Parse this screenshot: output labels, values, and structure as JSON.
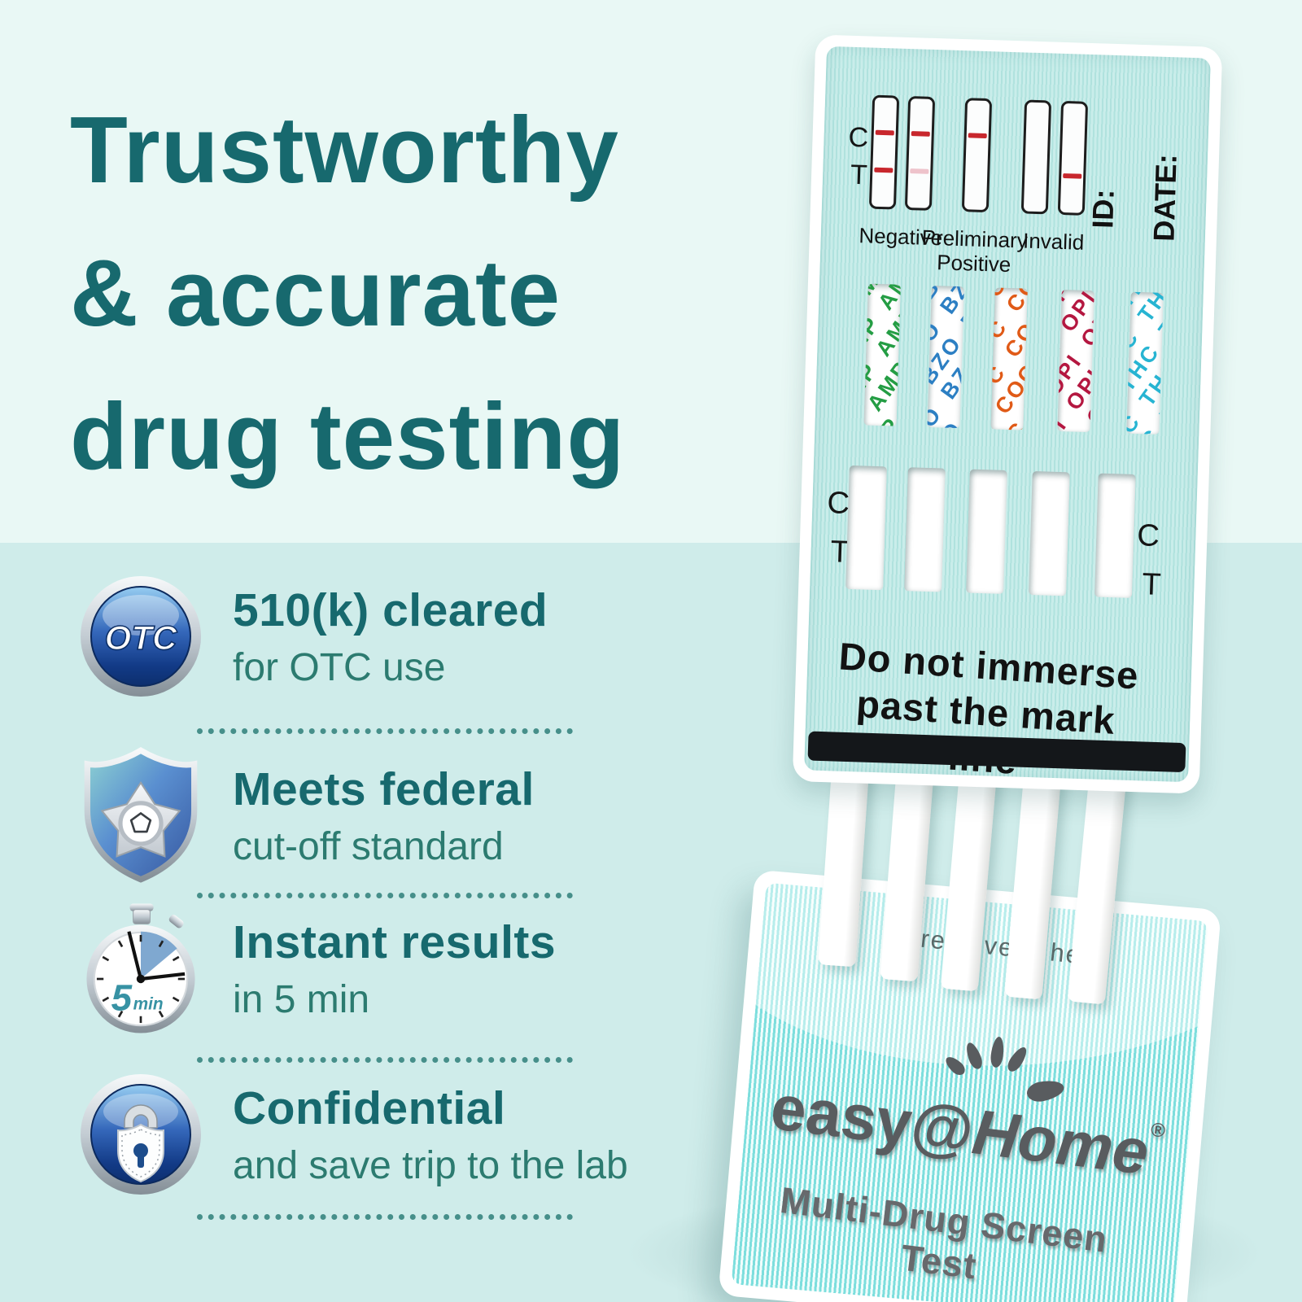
{
  "colors": {
    "heading_teal": "#17696e",
    "subtext_teal": "#2c7b70",
    "background_top": "#e9f8f5",
    "background_bottom": "#cfecea",
    "separator_teal": "#2f7f7a",
    "device_label_teal": "#bce7e3",
    "cap_aqua": "#7ddedd",
    "test_line_red": "#c8272d",
    "faint_test_line_pink": "#eec3cb",
    "mark_line_black": "#14171a",
    "logo_gray": "#595c5f",
    "otc_badge_blue": "#12356f",
    "stopwatch_accent_teal": "#3792a4"
  },
  "headline": {
    "line1": "Trustworthy",
    "line2": "& accurate",
    "line3": "drug testing"
  },
  "features": [
    {
      "icon": "otc-badge-icon",
      "icon_text": "OTC",
      "title": "510(k) cleared",
      "subtitle": "for OTC use"
    },
    {
      "icon": "federal-shield-icon",
      "title": "Meets federal",
      "subtitle": "cut-off standard"
    },
    {
      "icon": "stopwatch-icon",
      "icon_number": "5",
      "icon_unit": "min",
      "title": "Instant results",
      "subtitle": "in 5 min"
    },
    {
      "icon": "lock-icon",
      "title": "Confidential",
      "subtitle": "and save trip to the lab"
    }
  ],
  "device": {
    "interpretation": {
      "c_label": "C",
      "t_label": "T",
      "result_labels": [
        "Negative",
        "Preliminary Positive",
        "Invalid"
      ],
      "example_strips": [
        {
          "c_line": "strong",
          "t_line": "strong"
        },
        {
          "c_line": "strong",
          "t_line": "faint"
        },
        {
          "c_line": "strong",
          "t_line": "none"
        },
        {
          "c_line": "none",
          "t_line": "none"
        },
        {
          "c_line": "none",
          "t_line": "strong"
        }
      ],
      "id_label": "ID:",
      "date_label": "DATE:"
    },
    "drug_windows": [
      {
        "code": "AMP",
        "color": "#249d44"
      },
      {
        "code": "BZO",
        "color": "#2c7fc3"
      },
      {
        "code": "COC",
        "color": "#e05a17"
      },
      {
        "code": "OPI",
        "color": "#b41740"
      },
      {
        "code": "THC",
        "color": "#27b4d2"
      }
    ],
    "result_windows": {
      "left_c": "C",
      "left_t": "T",
      "right_c": "C",
      "right_t": "T"
    },
    "immersion_warning": {
      "line1": "Do not immerse",
      "line2": "past the mark line"
    },
    "remove_here": "remove here",
    "brand": {
      "prefix": "easy",
      "at": "@",
      "suffix": "Home",
      "registered": "®",
      "product": "Multi-Drug Screen Test"
    }
  }
}
